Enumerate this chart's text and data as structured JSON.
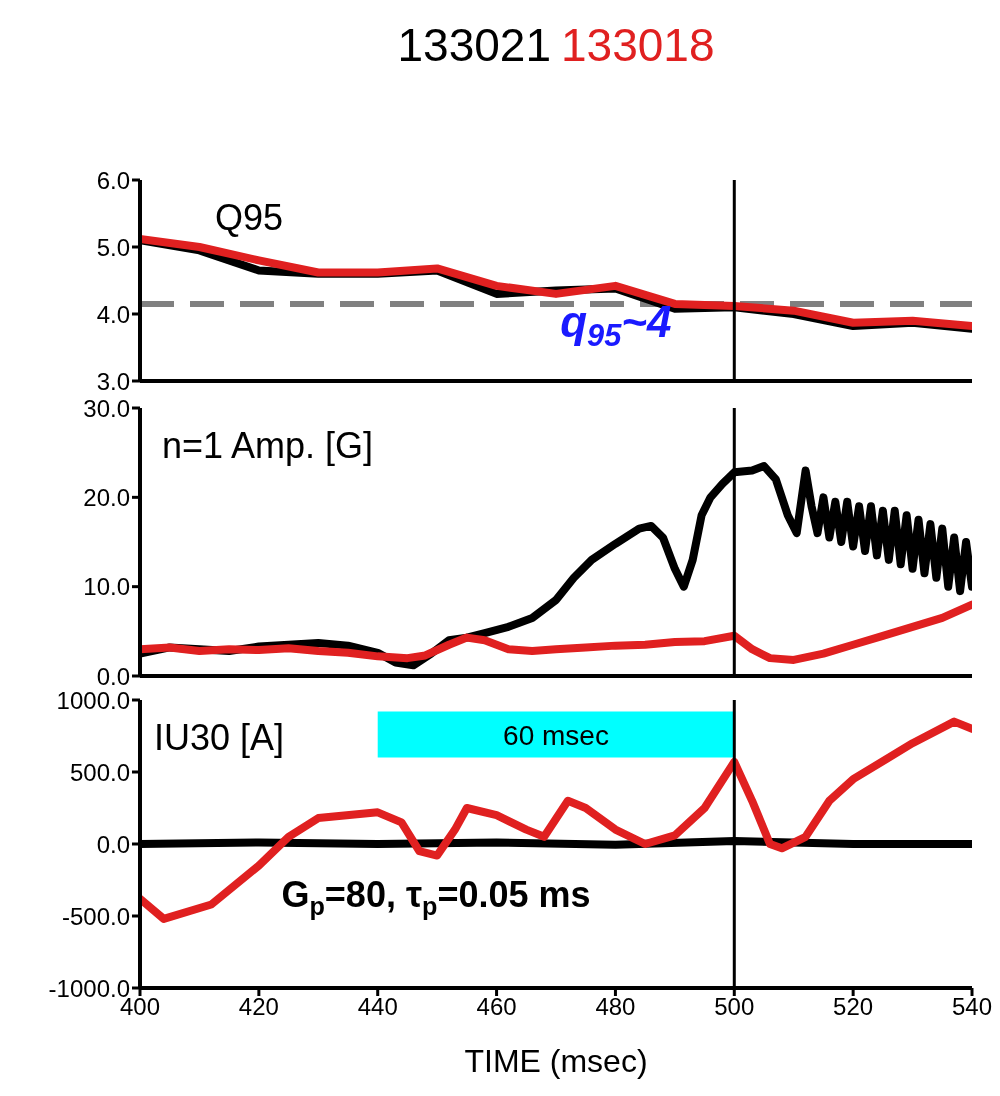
{
  "chart_data": [
    {
      "type": "line",
      "title": "Q95",
      "legend": "top",
      "marker": "none",
      "line_style": "solid",
      "tick_labels": "y",
      "xlim": [
        400,
        540
      ],
      "xticks": [
        400,
        420,
        440,
        460,
        480,
        500,
        520,
        540
      ],
      "ylim": [
        3,
        6
      ],
      "yticks": [
        {
          "value": 3,
          "label": "3.0"
        },
        {
          "value": 4,
          "label": "4.0"
        },
        {
          "value": 5,
          "label": "5.0"
        },
        {
          "value": 6,
          "label": "6.0"
        }
      ],
      "series": [
        {
          "name": "133021",
          "color": "#000000",
          "x": [
            400,
            410,
            420,
            430,
            440,
            450,
            460,
            470,
            480,
            490,
            500,
            510,
            520,
            530,
            540
          ],
          "values": [
            5.1,
            4.95,
            4.65,
            4.6,
            4.6,
            4.65,
            4.3,
            4.35,
            4.38,
            4.08,
            4.1,
            4.0,
            3.82,
            3.87,
            3.78
          ]
        },
        {
          "name": "133018",
          "color": "#e02020",
          "x": [
            400,
            410,
            420,
            430,
            440,
            450,
            460,
            470,
            480,
            490,
            500,
            510,
            520,
            530,
            540
          ],
          "values": [
            5.12,
            5.0,
            4.8,
            4.62,
            4.62,
            4.68,
            4.42,
            4.3,
            4.42,
            4.15,
            4.12,
            4.05,
            3.87,
            3.9,
            3.82
          ]
        }
      ],
      "ref_lines": [
        {
          "axis": "y",
          "value": 4.15,
          "color": "#808080",
          "line_style": "dashed"
        },
        {
          "axis": "x",
          "value": 500,
          "color": "#000000",
          "line_style": "solid"
        }
      ],
      "annotations": [
        "q$_{95}$~4"
      ]
    },
    {
      "type": "line",
      "title": "n=1 Amp. [G]",
      "marker": "none",
      "line_style": "solid",
      "tick_labels": "y",
      "xlim": [
        400,
        540
      ],
      "xticks": [
        400,
        420,
        440,
        460,
        480,
        500,
        520,
        540
      ],
      "ylim": [
        0,
        30
      ],
      "yticks": [
        {
          "value": 0,
          "label": "0.0"
        },
        {
          "value": 10,
          "label": "10.0"
        },
        {
          "value": 20,
          "label": "20.0"
        },
        {
          "value": 30,
          "label": "30.0"
        }
      ],
      "series": [
        {
          "color": "#000000",
          "x": [
            400,
            405,
            410,
            415,
            420,
            425,
            430,
            435,
            440,
            443,
            446,
            449,
            452,
            455,
            458,
            462,
            466,
            470,
            473,
            476,
            480,
            484,
            486,
            488,
            490,
            491.5,
            493,
            494.5,
            496,
            498,
            500,
            503,
            505,
            507,
            509,
            510.5,
            512,
            513,
            514,
            515,
            516,
            517,
            518,
            519,
            520,
            521,
            522,
            523,
            524,
            525,
            526,
            527,
            528,
            529,
            530,
            531,
            532,
            533,
            534,
            535,
            536,
            537,
            538,
            539,
            540
          ],
          "values": [
            2.5,
            3.2,
            3,
            2.8,
            3.3,
            3.5,
            3.7,
            3.4,
            2.6,
            1.5,
            1.2,
            2.5,
            4,
            4.3,
            4.8,
            5.5,
            6.5,
            8.5,
            11,
            13,
            14.8,
            16.5,
            16.8,
            15.5,
            12,
            10,
            13,
            18,
            20,
            21.5,
            22.8,
            23,
            23.5,
            22,
            18,
            16,
            23,
            19,
            16,
            20,
            15.5,
            19.5,
            15,
            19.5,
            14.5,
            19,
            14,
            19,
            13.5,
            18.5,
            13,
            18.5,
            12.5,
            18,
            12,
            17.5,
            11.5,
            17,
            11,
            16.5,
            10,
            15.5,
            9.5,
            15,
            10
          ]
        },
        {
          "color": "#e02020",
          "x": [
            400,
            405,
            410,
            415,
            420,
            425,
            430,
            435,
            440,
            445,
            448,
            452,
            455,
            458,
            462,
            466,
            470,
            475,
            480,
            485,
            490,
            495,
            500,
            503,
            506,
            510,
            515,
            520,
            525,
            530,
            535,
            540
          ],
          "values": [
            3,
            3.2,
            2.8,
            3,
            2.9,
            3.1,
            2.8,
            2.6,
            2.2,
            2,
            2.3,
            3.5,
            4.3,
            4,
            3,
            2.8,
            3,
            3.2,
            3.4,
            3.5,
            3.8,
            3.9,
            4.5,
            3,
            2,
            1.8,
            2.5,
            3.5,
            4.5,
            5.5,
            6.5,
            8
          ]
        }
      ],
      "ref_lines": [
        {
          "axis": "x",
          "value": 500,
          "color": "#000000",
          "line_style": "solid"
        }
      ]
    },
    {
      "type": "line",
      "title": "IU30 [A]",
      "xlabel": "TIME (msec)",
      "marker": "none",
      "line_style": "solid",
      "xlim": [
        400,
        540
      ],
      "xticks": [
        400,
        420,
        440,
        460,
        480,
        500,
        520,
        540
      ],
      "ylim": [
        -1000,
        1000
      ],
      "yticks": [
        {
          "value": -1000,
          "label": "-1000.0"
        },
        {
          "value": -500,
          "label": "-500.0"
        },
        {
          "value": 0,
          "label": "0.0"
        },
        {
          "value": 500,
          "label": "500.0"
        },
        {
          "value": 1000,
          "label": "1000.0"
        }
      ],
      "series": [
        {
          "color": "#000000",
          "x": [
            400,
            420,
            440,
            460,
            480,
            500,
            520,
            540
          ],
          "values": [
            0,
            10,
            0,
            10,
            -5,
            20,
            0,
            0
          ]
        },
        {
          "color": "#e02020",
          "x": [
            400,
            404,
            412,
            420,
            425,
            430,
            440,
            444,
            447,
            450,
            453,
            455,
            460,
            465,
            468,
            472,
            475,
            480,
            485,
            490,
            495,
            500,
            503,
            506,
            508,
            512,
            516,
            520,
            530,
            537,
            540
          ],
          "values": [
            -380,
            -520,
            -420,
            -150,
            50,
            180,
            220,
            150,
            -50,
            -80,
            100,
            250,
            200,
            100,
            50,
            300,
            250,
            100,
            0,
            60,
            250,
            570,
            300,
            0,
            -30,
            50,
            300,
            450,
            700,
            850,
            800
          ]
        }
      ],
      "ref_lines": [
        {
          "axis": "x",
          "value": 500,
          "color": "#000000",
          "line_style": "solid"
        }
      ],
      "bands": [
        {
          "axis": "x",
          "from": 440,
          "to": 500,
          "label": "60 msec",
          "color": "#00ffff"
        }
      ],
      "annotations": [
        "G$_{p}$=80, τ$_{p}$=0.05 ms"
      ]
    }
  ]
}
